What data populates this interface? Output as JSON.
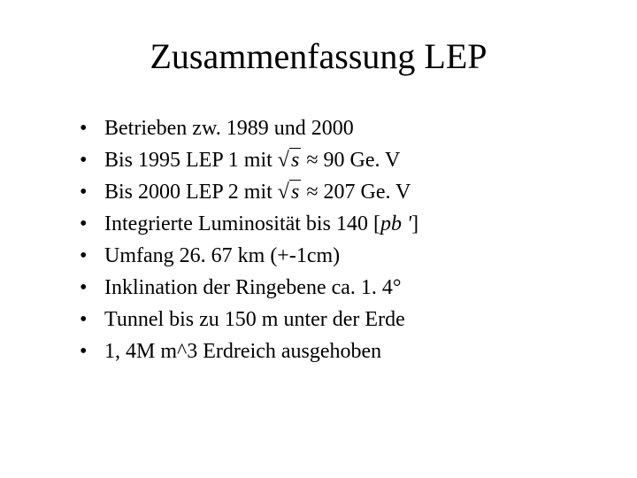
{
  "title": "Zusammenfassung LEP",
  "bullets": [
    {
      "pre": "Betrieben zw. 1989 und 2000",
      "formula": "",
      "post": ""
    },
    {
      "pre": "Bis 1995 LEP 1 mit ",
      "formula": "√s ≈ 90",
      "sqrt_s": "s",
      "approx_val": "90",
      "post": " Ge. V"
    },
    {
      "pre": "Bis 2000 LEP 2 mit ",
      "formula": "√s ≈ 207",
      "sqrt_s": "s",
      "approx_val": "207",
      "post": " Ge. V"
    },
    {
      "pre": "Integrierte Luminosität bis 140 ",
      "formula": "[pb']",
      "bracket_inner": "pb '",
      "post": ""
    },
    {
      "pre": "Umfang 26. 67 km (+-1cm)",
      "formula": "",
      "post": ""
    },
    {
      "pre": "Inklination der Ringebene ca. 1. 4°",
      "formula": "",
      "post": ""
    },
    {
      "pre": "Tunnel bis zu 150 m unter der Erde",
      "formula": "",
      "post": ""
    },
    {
      "pre": "1, 4M m^3 Erdreich ausgehoben",
      "formula": "",
      "post": ""
    }
  ],
  "colors": {
    "background": "#ffffff",
    "text": "#000000"
  },
  "typography": {
    "title_fontsize": 40,
    "bullet_fontsize": 24,
    "font_family": "Times New Roman"
  }
}
